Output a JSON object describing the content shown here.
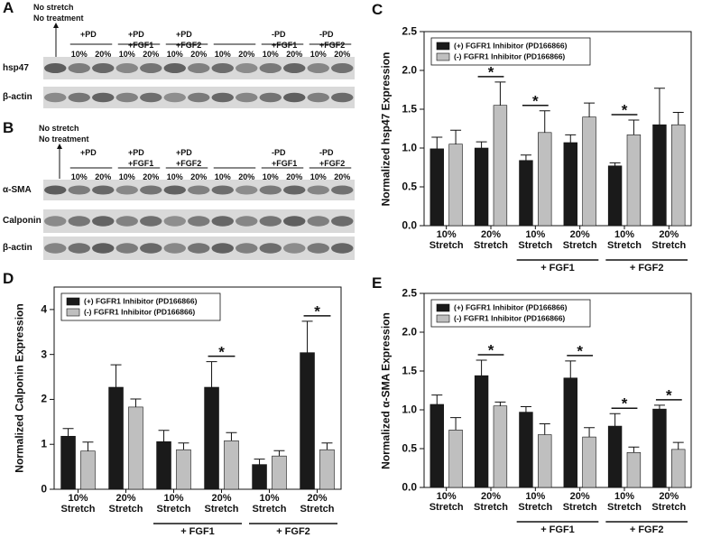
{
  "blot_panels": [
    {
      "letter": "A",
      "control_label": [
        "No stretch",
        "No treatment"
      ],
      "groups": [
        [
          "+PD"
        ],
        [
          "+PD",
          "+FGF1"
        ],
        [
          "+PD",
          "+FGF2"
        ],
        null,
        [
          "-PD",
          "+FGF1"
        ],
        [
          "-PD",
          "+FGF2"
        ]
      ],
      "lane_labels": [
        "10%",
        "20%"
      ],
      "rows": [
        "hsp47",
        "β-actin"
      ]
    },
    {
      "letter": "B",
      "control_label": [
        "No stretch",
        "No treatment"
      ],
      "groups": [
        [
          "+PD"
        ],
        [
          "+PD",
          "+FGF1"
        ],
        [
          "+PD",
          "+FGF2"
        ],
        null,
        [
          "-PD",
          "+FGF1"
        ],
        [
          "-PD",
          "+FGF2"
        ]
      ],
      "lane_labels": [
        "10%",
        "20%"
      ],
      "rows": [
        "α-SMA",
        "Calponin",
        "β-actin"
      ]
    }
  ],
  "chart_data": [
    {
      "type": "bar",
      "panel_letter": "C",
      "y_label": "Normalized hsp47 Expression",
      "categories": [
        "10% Stretch",
        "20% Stretch",
        "10% Stretch",
        "20% Stretch",
        "10% Stretch",
        "20% Stretch"
      ],
      "group_labels": [
        "+ FGF1",
        "+ FGF2"
      ],
      "series": [
        {
          "name": "(+) FGFR1 Inhibitor (PD166866)",
          "color": "#1a1a1a",
          "values": [
            0.99,
            1.0,
            0.84,
            1.07,
            0.77,
            1.3
          ],
          "errors": [
            0.15,
            0.08,
            0.07,
            0.1,
            0.04,
            0.47
          ]
        },
        {
          "name": "(-) FGFR1 Inhibitor (PD166866)",
          "color": "#bfbfbf",
          "values": [
            1.05,
            1.55,
            1.2,
            1.4,
            1.17,
            1.3
          ],
          "errors": [
            0.18,
            0.3,
            0.28,
            0.18,
            0.19,
            0.16
          ]
        }
      ],
      "significance": [
        null,
        "*",
        "*",
        null,
        "*",
        null
      ],
      "ylim": [
        0,
        2.5
      ],
      "yticks": [
        {
          "value": 0,
          "label": "0.0"
        },
        0.5,
        {
          "value": 1,
          "label": "1.0"
        },
        1.5,
        {
          "value": 2,
          "label": "2.0"
        },
        2.5
      ],
      "legend": "upper left"
    },
    {
      "type": "bar",
      "panel_letter": "D",
      "y_label": "Normalized Calponin Expression",
      "categories": [
        "10% Stretch",
        "20% Stretch",
        "10% Stretch",
        "20% Stretch",
        "10% Stretch",
        "20% Stretch"
      ],
      "group_labels": [
        "+ FGF1",
        "+ FGF2"
      ],
      "series": [
        {
          "name": "(+) FGFR1 Inhibitor (PD166866)",
          "color": "#1a1a1a",
          "values": [
            1.18,
            2.27,
            1.06,
            2.27,
            0.55,
            3.04
          ],
          "errors": [
            0.17,
            0.5,
            0.25,
            0.57,
            0.12,
            0.7
          ]
        },
        {
          "name": "(-) FGFR1 Inhibitor (PD166866)",
          "color": "#bfbfbf",
          "values": [
            0.85,
            1.83,
            0.88,
            1.08,
            0.74,
            0.88
          ],
          "errors": [
            0.2,
            0.18,
            0.15,
            0.18,
            0.12,
            0.15
          ]
        }
      ],
      "significance": [
        null,
        null,
        null,
        "*",
        null,
        "*"
      ],
      "ylim": [
        0,
        4.5
      ],
      "yticks": [
        0,
        1,
        2,
        3,
        4
      ],
      "legend": "upper left"
    },
    {
      "type": "bar",
      "panel_letter": "E",
      "y_label": "Normalized α-SMA Expression",
      "categories": [
        "10% Stretch",
        "20% Stretch",
        "10% Stretch",
        "20% Stretch",
        "10% Stretch",
        "20% Stretch"
      ],
      "group_labels": [
        "+ FGF1",
        "+ FGF2"
      ],
      "series": [
        {
          "name": "(+) FGFR1 Inhibitor (PD166866)",
          "color": "#1a1a1a",
          "values": [
            1.07,
            1.44,
            0.97,
            1.41,
            0.79,
            1.01
          ],
          "errors": [
            0.12,
            0.2,
            0.07,
            0.22,
            0.16,
            0.05
          ]
        },
        {
          "name": "(-) FGFR1 Inhibitor (PD166866)",
          "color": "#bfbfbf",
          "values": [
            0.74,
            1.05,
            0.68,
            0.65,
            0.45,
            0.49
          ],
          "errors": [
            0.16,
            0.05,
            0.14,
            0.12,
            0.07,
            0.09
          ]
        }
      ],
      "significance": [
        null,
        "*",
        null,
        "*",
        "*",
        "*"
      ],
      "ylim": [
        0,
        2.5
      ],
      "yticks": [
        {
          "value": 0,
          "label": "0.0"
        },
        0.5,
        {
          "value": 1,
          "label": "1.0"
        },
        1.5,
        {
          "value": 2,
          "label": "2.0"
        },
        2.5
      ],
      "legend": "upper left"
    }
  ]
}
